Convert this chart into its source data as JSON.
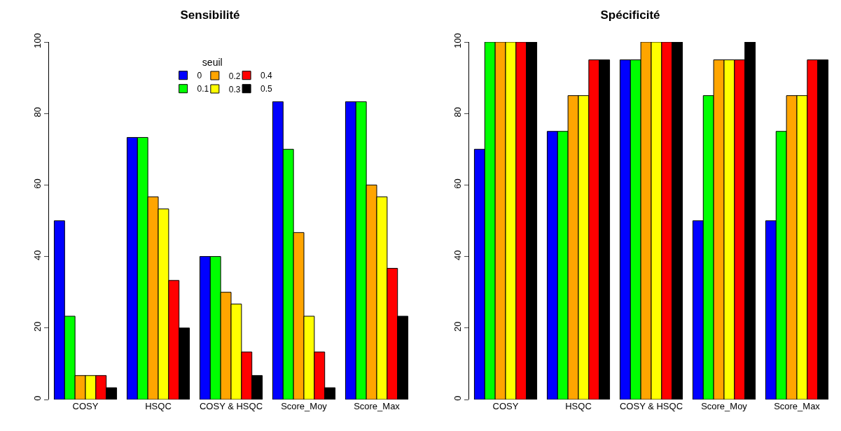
{
  "chart_data": [
    {
      "type": "bar",
      "title": "Sensibilité",
      "categories": [
        "COSY",
        "HSQC",
        "COSY & HSQC",
        "Score_Moy",
        "Score_Max"
      ],
      "ylim": [
        0,
        100
      ],
      "yticks": [
        0,
        20,
        40,
        60,
        80,
        100
      ],
      "legend": "top",
      "legend_title": "seuil",
      "grid": false,
      "series": [
        {
          "name": "0",
          "color": "#0000ff",
          "values": [
            50,
            73.3,
            40,
            83.3,
            83.3
          ]
        },
        {
          "name": "0.1",
          "color": "#00ff00",
          "values": [
            23.3,
            73.3,
            40,
            70,
            83.3
          ]
        },
        {
          "name": "0.2",
          "color": "#ffa500",
          "values": [
            6.7,
            56.7,
            30,
            46.7,
            60
          ]
        },
        {
          "name": "0.3",
          "color": "#ffff00",
          "values": [
            6.7,
            53.3,
            26.7,
            23.3,
            56.7
          ]
        },
        {
          "name": "0.4",
          "color": "#ff0000",
          "values": [
            6.7,
            33.3,
            13.3,
            13.3,
            36.7
          ]
        },
        {
          "name": "0.5",
          "color": "#000000",
          "values": [
            3.3,
            20,
            6.7,
            3.3,
            23.3
          ]
        }
      ]
    },
    {
      "type": "bar",
      "title": "Spécificité",
      "categories": [
        "COSY",
        "HSQC",
        "COSY & HSQC",
        "Score_Moy",
        "Score_Max"
      ],
      "ylim": [
        0,
        100
      ],
      "yticks": [
        0,
        20,
        40,
        60,
        80,
        100
      ],
      "legend": false,
      "grid": false,
      "series": [
        {
          "name": "0",
          "color": "#0000ff",
          "values": [
            70,
            75,
            95,
            50,
            50
          ]
        },
        {
          "name": "0.1",
          "color": "#00ff00",
          "values": [
            100,
            75,
            95,
            85,
            75
          ]
        },
        {
          "name": "0.2",
          "color": "#ffa500",
          "values": [
            100,
            85,
            100,
            95,
            85
          ]
        },
        {
          "name": "0.3",
          "color": "#ffff00",
          "values": [
            100,
            85,
            100,
            95,
            85
          ]
        },
        {
          "name": "0.4",
          "color": "#ff0000",
          "values": [
            100,
            95,
            100,
            95,
            95
          ]
        },
        {
          "name": "0.5",
          "color": "#000000",
          "values": [
            100,
            95,
            100,
            100,
            95
          ]
        }
      ]
    }
  ]
}
